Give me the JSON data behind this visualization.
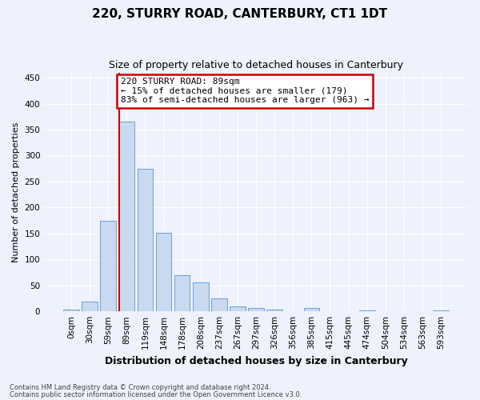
{
  "title": "220, STURRY ROAD, CANTERBURY, CT1 1DT",
  "subtitle": "Size of property relative to detached houses in Canterbury",
  "xlabel": "Distribution of detached houses by size in Canterbury",
  "ylabel": "Number of detached properties",
  "annotation_line1": "220 STURRY ROAD: 89sqm",
  "annotation_line2": "← 15% of detached houses are smaller (179)",
  "annotation_line3": "83% of semi-detached houses are larger (963) →",
  "bar_color": "#c9d9f0",
  "bar_edge_color": "#6a9fd8",
  "highlight_line_color": "#cc0000",
  "categories": [
    "0sqm",
    "30sqm",
    "59sqm",
    "89sqm",
    "119sqm",
    "148sqm",
    "178sqm",
    "208sqm",
    "237sqm",
    "267sqm",
    "297sqm",
    "326sqm",
    "356sqm",
    "385sqm",
    "415sqm",
    "445sqm",
    "474sqm",
    "504sqm",
    "534sqm",
    "563sqm",
    "593sqm"
  ],
  "values": [
    3,
    18,
    175,
    365,
    275,
    152,
    70,
    55,
    25,
    10,
    6,
    4,
    0,
    6,
    0,
    0,
    2,
    0,
    0,
    0,
    2
  ],
  "ylim": [
    0,
    460
  ],
  "yticks": [
    0,
    50,
    100,
    150,
    200,
    250,
    300,
    350,
    400,
    450
  ],
  "footnote1": "Contains HM Land Registry data © Crown copyright and database right 2024.",
  "footnote2": "Contains public sector information licensed under the Open Government Licence v3.0.",
  "bg_color": "#edf2fc",
  "plot_bg_color": "#edf2fc",
  "annotation_box_color": "#ffffff",
  "annotation_box_edge": "#cc0000",
  "grid_color": "#ffffff",
  "title_fontsize": 11,
  "subtitle_fontsize": 9,
  "ylabel_fontsize": 8,
  "xlabel_fontsize": 9,
  "tick_fontsize": 7.5,
  "annotation_fontsize": 8
}
